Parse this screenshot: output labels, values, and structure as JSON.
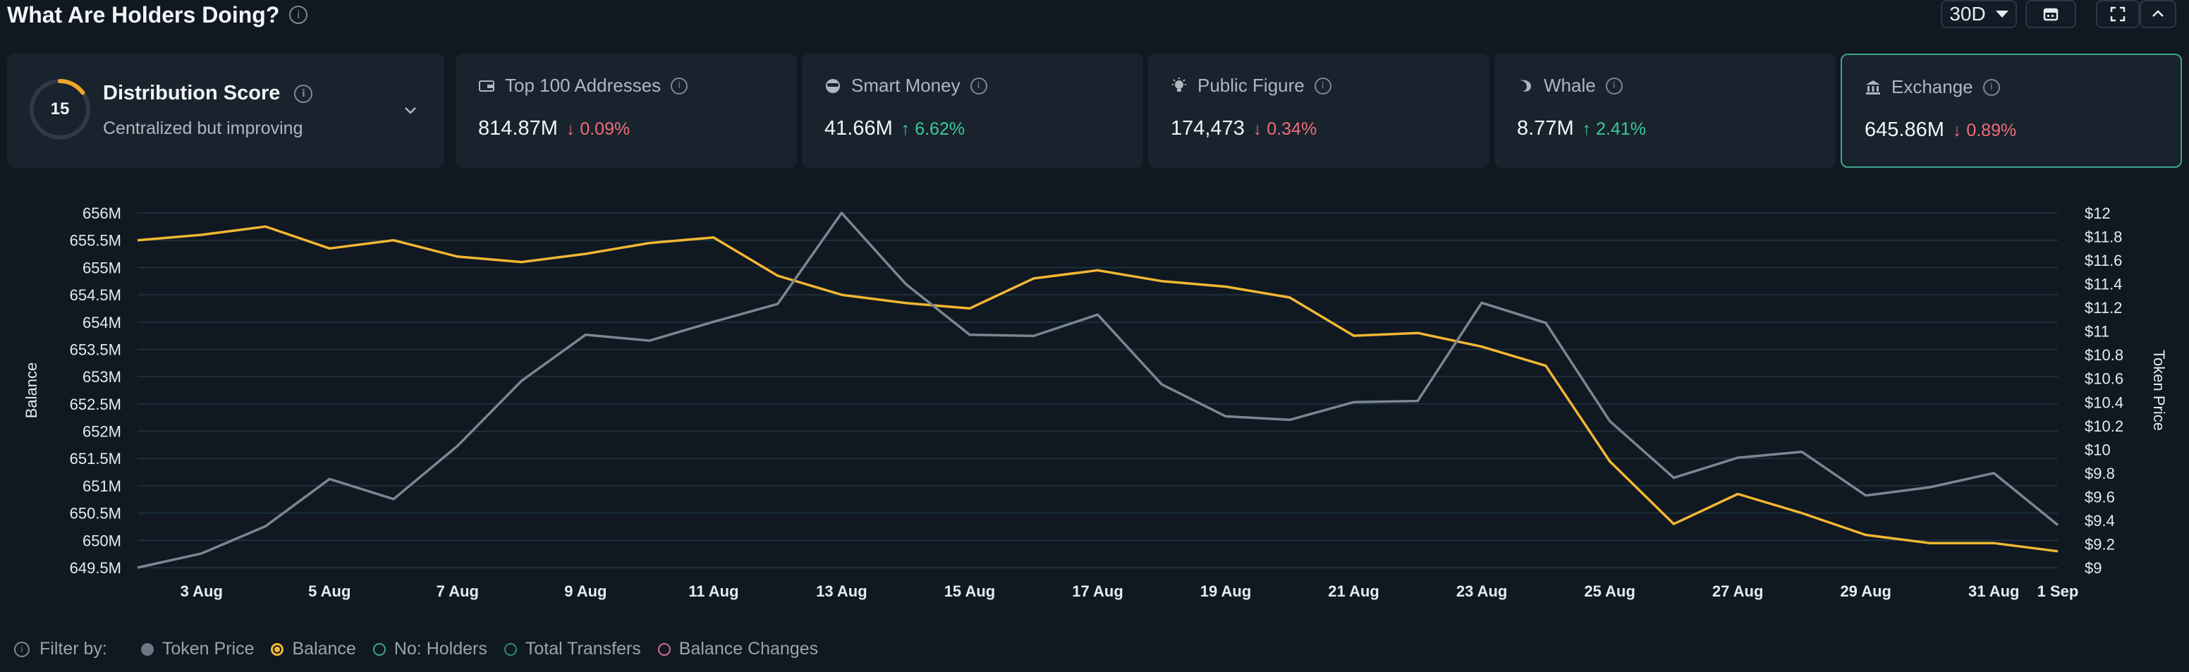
{
  "header": {
    "title": "What Are Holders Doing?",
    "period": "30D"
  },
  "distribution": {
    "score": "15",
    "score_fraction": 0.15,
    "title": "Distribution Score",
    "subtitle": "Centralized but improving"
  },
  "cards": [
    {
      "label": "Top 100 Addresses",
      "value": "814.87M",
      "change": "0.09%",
      "direction": "down",
      "icon": "wallet-icon"
    },
    {
      "label": "Smart Money",
      "value": "41.66M",
      "change": "6.62%",
      "direction": "up",
      "icon": "sunglasses-icon"
    },
    {
      "label": "Public Figure",
      "value": "174,473",
      "change": "0.34%",
      "direction": "down",
      "icon": "lightbulb-icon"
    },
    {
      "label": "Whale",
      "value": "8.77M",
      "change": "2.41%",
      "direction": "up",
      "icon": "whale-icon"
    },
    {
      "label": "Exchange",
      "value": "645.86M",
      "change": "0.89%",
      "direction": "down",
      "icon": "bank-icon"
    }
  ],
  "colors": {
    "balance": "#f2b732",
    "token_price": "#7a8793",
    "accent": "#3fa58c",
    "down": "#f06d7a",
    "up": "#3cc99a"
  },
  "chart_data": {
    "type": "line",
    "ylabel": "Balance",
    "y2label": "Token Price",
    "ylim": [
      649.5,
      656
    ],
    "y2lim": [
      9,
      12
    ],
    "yticks": [
      "649.5M",
      "650M",
      "650.5M",
      "651M",
      "651.5M",
      "652M",
      "652.5M",
      "653M",
      "653.5M",
      "654M",
      "654.5M",
      "655M",
      "655.5M",
      "656M"
    ],
    "y2ticks": [
      "$9",
      "$9.2",
      "$9.4",
      "$9.6",
      "$9.8",
      "$10",
      "$10.2",
      "$10.4",
      "$10.6",
      "$10.8",
      "$11",
      "$11.2",
      "$11.4",
      "$11.6",
      "$11.8",
      "$12"
    ],
    "xticks": [
      "3 Aug",
      "5 Aug",
      "7 Aug",
      "9 Aug",
      "11 Aug",
      "13 Aug",
      "15 Aug",
      "17 Aug",
      "19 Aug",
      "21 Aug",
      "23 Aug",
      "25 Aug",
      "27 Aug",
      "29 Aug",
      "31 Aug",
      "1 Sep"
    ],
    "x": [
      "2 Aug",
      "3 Aug",
      "4 Aug",
      "5 Aug",
      "6 Aug",
      "7 Aug",
      "8 Aug",
      "9 Aug",
      "10 Aug",
      "11 Aug",
      "12 Aug",
      "13 Aug",
      "14 Aug",
      "15 Aug",
      "16 Aug",
      "17 Aug",
      "18 Aug",
      "19 Aug",
      "20 Aug",
      "21 Aug",
      "22 Aug",
      "23 Aug",
      "24 Aug",
      "25 Aug",
      "26 Aug",
      "27 Aug",
      "28 Aug",
      "29 Aug",
      "30 Aug",
      "31 Aug",
      "1 Sep"
    ],
    "series": [
      {
        "name": "Balance",
        "axis": "left",
        "color": "#f2b732",
        "values": [
          655.5,
          655.6,
          655.75,
          655.35,
          655.5,
          655.2,
          655.1,
          655.25,
          655.45,
          655.55,
          654.85,
          654.5,
          654.35,
          654.25,
          654.8,
          654.95,
          654.75,
          654.65,
          654.45,
          653.75,
          653.8,
          653.55,
          653.2,
          651.45,
          650.3,
          650.85,
          650.5,
          650.1,
          649.95,
          649.95,
          649.8
        ]
      },
      {
        "name": "Token Price",
        "axis": "right",
        "color": "#7a8793",
        "values": [
          9,
          9.12,
          9.35,
          9.75,
          9.58,
          10.03,
          10.58,
          10.97,
          10.92,
          11.08,
          11.23,
          12,
          11.4,
          10.97,
          10.96,
          11.14,
          10.55,
          10.28,
          10.25,
          10.4,
          10.41,
          11.24,
          11.07,
          10.24,
          9.76,
          9.93,
          9.98,
          9.61,
          9.68,
          9.8,
          9.36
        ]
      }
    ]
  },
  "filter": {
    "label": "Filter by:",
    "items": [
      {
        "label": "Token Price",
        "style": "filled",
        "color": "#6b7884"
      },
      {
        "label": "Balance",
        "style": "selected",
        "color": "#f2b732"
      },
      {
        "label": "No: Holders",
        "style": "outline",
        "color": "#3fa58c"
      },
      {
        "label": "Total Transfers",
        "style": "outline",
        "color": "#2d8a6e"
      },
      {
        "label": "Balance Changes",
        "style": "outline",
        "color": "#d46b9c"
      }
    ]
  }
}
